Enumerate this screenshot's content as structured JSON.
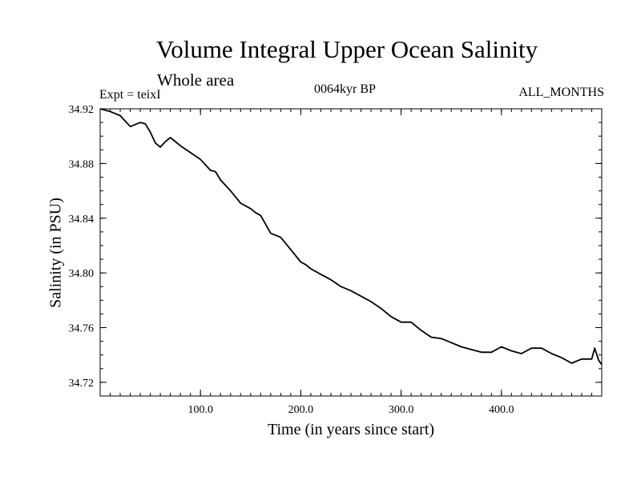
{
  "chart_data": {
    "type": "line",
    "title": "Volume Integral Upper Ocean Salinity",
    "subtitle": "Whole area",
    "annotations": {
      "left": "Expt = teixI",
      "center": "0064kyr BP",
      "right": "ALL_MONTHS"
    },
    "xlabel": "Time (in years since start)",
    "ylabel": "Salinity (in PSU)",
    "xlim": [
      0,
      500
    ],
    "ylim": [
      34.71,
      34.92
    ],
    "x_ticks": [
      100,
      200,
      300,
      400
    ],
    "x_tick_labels": [
      "100.0",
      "200.0",
      "300.0",
      "400.0"
    ],
    "y_ticks": [
      34.72,
      34.76,
      34.8,
      34.84,
      34.88,
      34.92
    ],
    "y_tick_labels": [
      "34.72",
      "34.76",
      "34.80",
      "34.84",
      "34.88",
      "34.92"
    ],
    "grid": false,
    "series": [
      {
        "color": "#000000",
        "x": [
          0,
          10,
          20,
          30,
          40,
          45,
          50,
          55,
          60,
          65,
          70,
          75,
          80,
          90,
          100,
          105,
          110,
          115,
          120,
          130,
          140,
          150,
          155,
          160,
          170,
          180,
          190,
          200,
          205,
          210,
          220,
          230,
          240,
          250,
          260,
          270,
          280,
          290,
          300,
          310,
          320,
          330,
          340,
          350,
          360,
          370,
          380,
          390,
          400,
          410,
          420,
          430,
          440,
          450,
          460,
          470,
          480,
          490,
          493,
          497,
          500
        ],
        "y": [
          34.92,
          34.918,
          34.915,
          34.907,
          34.91,
          34.909,
          34.903,
          34.895,
          34.892,
          34.896,
          34.899,
          34.896,
          34.893,
          34.888,
          34.883,
          34.879,
          34.875,
          34.874,
          34.868,
          34.86,
          34.851,
          34.847,
          34.844,
          34.842,
          34.829,
          34.826,
          34.817,
          34.808,
          34.806,
          34.803,
          34.799,
          34.795,
          34.79,
          34.787,
          34.783,
          34.779,
          34.774,
          34.768,
          34.764,
          34.764,
          34.758,
          34.753,
          34.752,
          34.749,
          34.746,
          34.744,
          34.742,
          34.742,
          34.746,
          34.743,
          34.741,
          34.745,
          34.745,
          34.741,
          34.738,
          34.734,
          34.737,
          34.737,
          34.745,
          34.736,
          34.733
        ]
      }
    ]
  }
}
